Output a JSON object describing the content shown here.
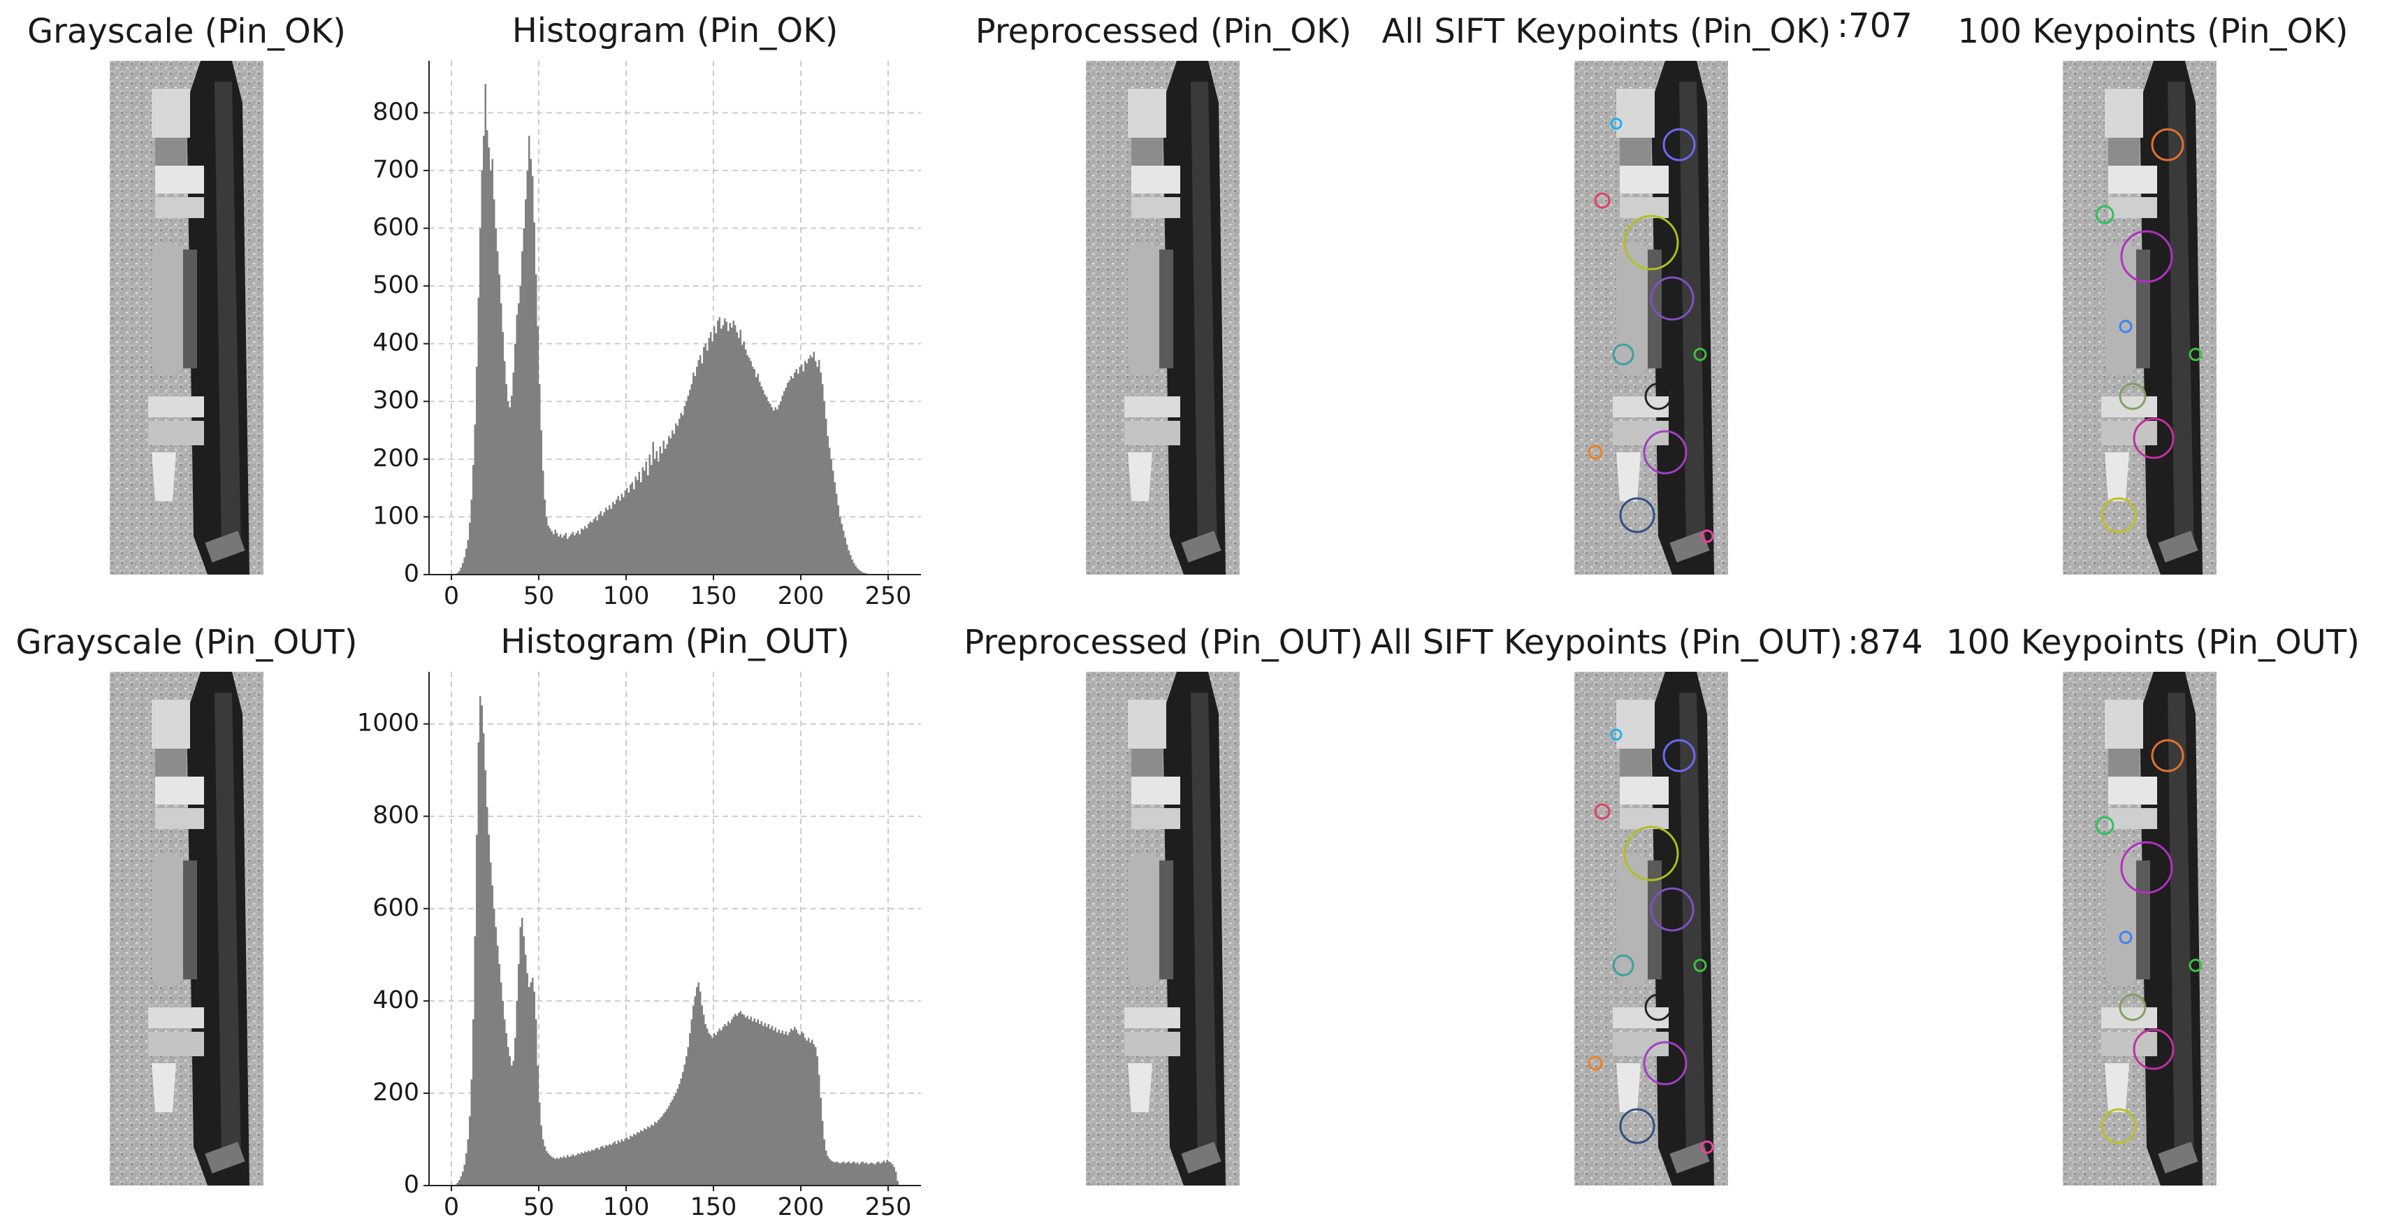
{
  "rows": [
    {
      "grayscale_title": "Grayscale (Pin_OK)",
      "preprocessed_title": "Preprocessed (Pin_OK)",
      "sift_title": "All SIFT Keypoints (Pin_OK)",
      "sift_count": ":707",
      "top100_title": "100 Keypoints (Pin_OK)"
    },
    {
      "grayscale_title": "Grayscale (Pin_OUT)",
      "preprocessed_title": "Preprocessed (Pin_OUT)",
      "sift_title": "All SIFT Keypoints (Pin_OUT)",
      "sift_count": ":874",
      "top100_title": "100 Keypoints (Pin_OUT)"
    }
  ],
  "chart_data": [
    {
      "type": "histogram",
      "title": "Histogram (Pin_OK)",
      "color": "#808080",
      "grid": true,
      "xlim": [
        -12.8,
        268.8
      ],
      "ylim": [
        0,
        890
      ],
      "xticks": [
        0,
        50,
        100,
        150,
        200,
        250
      ],
      "yticks": [
        0,
        100,
        200,
        300,
        400,
        500,
        600,
        700,
        800
      ],
      "bins": [
        0,
        1,
        2,
        3,
        4,
        5,
        6,
        7,
        8,
        9,
        10,
        11,
        12,
        13,
        14,
        15,
        16,
        17,
        18,
        19,
        20,
        21,
        22,
        23,
        24,
        25,
        26,
        27,
        28,
        29,
        30,
        31,
        32,
        33,
        34,
        35,
        36,
        37,
        38,
        39,
        40,
        41,
        42,
        43,
        44,
        45,
        46,
        47,
        48,
        49,
        50,
        51,
        52,
        53,
        54,
        55,
        56,
        57,
        58,
        59,
        60,
        61,
        62,
        63,
        64,
        65,
        66,
        67,
        68,
        69,
        70,
        71,
        72,
        73,
        74,
        75,
        76,
        77,
        78,
        79,
        80,
        81,
        82,
        83,
        84,
        85,
        86,
        87,
        88,
        89,
        90,
        91,
        92,
        93,
        94,
        95,
        96,
        97,
        98,
        99,
        100,
        101,
        102,
        103,
        104,
        105,
        106,
        107,
        108,
        109,
        110,
        111,
        112,
        113,
        114,
        115,
        116,
        117,
        118,
        119,
        120,
        121,
        122,
        123,
        124,
        125,
        126,
        127,
        128,
        129,
        130,
        131,
        132,
        133,
        134,
        135,
        136,
        137,
        138,
        139,
        140,
        141,
        142,
        143,
        144,
        145,
        146,
        147,
        148,
        149,
        150,
        151,
        152,
        153,
        154,
        155,
        156,
        157,
        158,
        159,
        160,
        161,
        162,
        163,
        164,
        165,
        166,
        167,
        168,
        169,
        170,
        171,
        172,
        173,
        174,
        175,
        176,
        177,
        178,
        179,
        180,
        181,
        182,
        183,
        184,
        185,
        186,
        187,
        188,
        189,
        190,
        191,
        192,
        193,
        194,
        195,
        196,
        197,
        198,
        199,
        200,
        201,
        202,
        203,
        204,
        205,
        206,
        207,
        208,
        209,
        210,
        211,
        212,
        213,
        214,
        215,
        216,
        217,
        218,
        219,
        220,
        221,
        222,
        223,
        224,
        225,
        226,
        227,
        228,
        229,
        230,
        231,
        232,
        233,
        234,
        235,
        236,
        237,
        238,
        239,
        240,
        241,
        242,
        243,
        244,
        245,
        246,
        247,
        248,
        249,
        250,
        251,
        252,
        253,
        254,
        255,
        256
      ],
      "values": [
        0,
        0,
        1,
        3,
        6,
        12,
        20,
        30,
        45,
        60,
        90,
        130,
        190,
        260,
        360,
        480,
        600,
        700,
        760,
        850,
        770,
        740,
        700,
        720,
        650,
        600,
        560,
        520,
        470,
        420,
        370,
        330,
        300,
        290,
        310,
        350,
        400,
        450,
        470,
        500,
        560,
        600,
        650,
        700,
        760,
        720,
        690,
        610,
        520,
        430,
        330,
        250,
        180,
        130,
        100,
        85,
        80,
        75,
        70,
        78,
        72,
        66,
        70,
        64,
        68,
        72,
        62,
        66,
        70,
        74,
        68,
        72,
        76,
        70,
        80,
        78,
        84,
        80,
        88,
        92,
        90,
        96,
        100,
        94,
        104,
        110,
        102,
        108,
        116,
        112,
        120,
        114,
        126,
        122,
        130,
        136,
        128,
        140,
        134,
        146,
        150,
        142,
        156,
        160,
        148,
        170,
        164,
        178,
        160,
        186,
        180,
        196,
        172,
        208,
        190,
        230,
        200,
        214,
        196,
        222,
        210,
        232,
        218,
        226,
        240,
        236,
        250,
        244,
        262,
        258,
        270,
        280,
        276,
        292,
        300,
        310,
        320,
        330,
        350,
        344,
        360,
        372,
        380,
        366,
        394,
        400,
        388,
        410,
        420,
        404,
        430,
        418,
        440,
        446,
        426,
        432,
        444,
        438,
        422,
        436,
        428,
        440,
        432,
        420,
        410,
        424,
        398,
        404,
        390,
        380,
        376,
        370,
        360,
        356,
        342,
        348,
        334,
        326,
        320,
        312,
        308,
        300,
        296,
        290,
        284,
        290,
        286,
        294,
        300,
        310,
        318,
        324,
        332,
        336,
        344,
        340,
        350,
        356,
        348,
        360,
        364,
        352,
        370,
        366,
        374,
        380,
        376,
        386,
        370,
        360,
        372,
        350,
        330,
        300,
        270,
        240,
        220,
        200,
        180,
        160,
        140,
        120,
        100,
        88,
        76,
        64,
        52,
        42,
        34,
        26,
        20,
        15,
        11,
        8,
        6,
        4,
        3,
        2,
        1,
        1,
        0,
        0,
        0,
        0,
        0,
        0,
        0,
        0,
        0,
        0,
        0,
        0,
        0,
        0,
        0,
        0
      ]
    },
    {
      "type": "histogram",
      "title": "Histogram (Pin_OUT)",
      "color": "#808080",
      "grid": true,
      "xlim": [
        -12.8,
        268.8
      ],
      "ylim": [
        0,
        1113
      ],
      "xticks": [
        0,
        50,
        100,
        150,
        200,
        250
      ],
      "yticks": [
        0,
        200,
        400,
        600,
        800,
        1000
      ],
      "bins": [
        0,
        1,
        2,
        3,
        4,
        5,
        6,
        7,
        8,
        9,
        10,
        11,
        12,
        13,
        14,
        15,
        16,
        17,
        18,
        19,
        20,
        21,
        22,
        23,
        24,
        25,
        26,
        27,
        28,
        29,
        30,
        31,
        32,
        33,
        34,
        35,
        36,
        37,
        38,
        39,
        40,
        41,
        42,
        43,
        44,
        45,
        46,
        47,
        48,
        49,
        50,
        51,
        52,
        53,
        54,
        55,
        56,
        57,
        58,
        59,
        60,
        61,
        62,
        63,
        64,
        65,
        66,
        67,
        68,
        69,
        70,
        71,
        72,
        73,
        74,
        75,
        76,
        77,
        78,
        79,
        80,
        81,
        82,
        83,
        84,
        85,
        86,
        87,
        88,
        89,
        90,
        91,
        92,
        93,
        94,
        95,
        96,
        97,
        98,
        99,
        100,
        101,
        102,
        103,
        104,
        105,
        106,
        107,
        108,
        109,
        110,
        111,
        112,
        113,
        114,
        115,
        116,
        117,
        118,
        119,
        120,
        121,
        122,
        123,
        124,
        125,
        126,
        127,
        128,
        129,
        130,
        131,
        132,
        133,
        134,
        135,
        136,
        137,
        138,
        139,
        140,
        141,
        142,
        143,
        144,
        145,
        146,
        147,
        148,
        149,
        150,
        151,
        152,
        153,
        154,
        155,
        156,
        157,
        158,
        159,
        160,
        161,
        162,
        163,
        164,
        165,
        166,
        167,
        168,
        169,
        170,
        171,
        172,
        173,
        174,
        175,
        176,
        177,
        178,
        179,
        180,
        181,
        182,
        183,
        184,
        185,
        186,
        187,
        188,
        189,
        190,
        191,
        192,
        193,
        194,
        195,
        196,
        197,
        198,
        199,
        200,
        201,
        202,
        203,
        204,
        205,
        206,
        207,
        208,
        209,
        210,
        211,
        212,
        213,
        214,
        215,
        216,
        217,
        218,
        219,
        220,
        221,
        222,
        223,
        224,
        225,
        226,
        227,
        228,
        229,
        230,
        231,
        232,
        233,
        234,
        235,
        236,
        237,
        238,
        239,
        240,
        241,
        242,
        243,
        244,
        245,
        246,
        247,
        248,
        249,
        250,
        251,
        252,
        253,
        254,
        255,
        256
      ],
      "values": [
        0,
        0,
        2,
        6,
        12,
        20,
        30,
        45,
        70,
        100,
        150,
        230,
        360,
        540,
        760,
        960,
        1060,
        1040,
        980,
        900,
        820,
        760,
        700,
        650,
        600,
        560,
        520,
        480,
        440,
        400,
        360,
        330,
        300,
        280,
        260,
        270,
        320,
        400,
        480,
        560,
        580,
        540,
        500,
        460,
        430,
        440,
        450,
        420,
        360,
        260,
        180,
        130,
        100,
        85,
        75,
        70,
        66,
        62,
        60,
        58,
        60,
        58,
        62,
        60,
        64,
        60,
        66,
        62,
        64,
        68,
        64,
        66,
        70,
        68,
        72,
        70,
        74,
        72,
        76,
        74,
        78,
        76,
        80,
        82,
        78,
        84,
        86,
        82,
        88,
        86,
        90,
        88,
        92,
        96,
        90,
        98,
        94,
        100,
        96,
        102,
        104,
        100,
        108,
        106,
        112,
        110,
        116,
        114,
        120,
        118,
        124,
        122,
        128,
        126,
        132,
        130,
        138,
        136,
        142,
        146,
        150,
        156,
        160,
        166,
        172,
        180,
        186,
        194,
        200,
        210,
        220,
        232,
        246,
        262,
        280,
        300,
        330,
        360,
        390,
        410,
        430,
        440,
        420,
        390,
        370,
        350,
        340,
        330,
        326,
        320,
        330,
        326,
        334,
        340,
        336,
        344,
        350,
        346,
        356,
        352,
        360,
        366,
        372,
        368,
        374,
        378,
        372,
        370,
        364,
        368,
        360,
        366,
        356,
        362,
        354,
        360,
        350,
        356,
        346,
        352,
        344,
        350,
        340,
        346,
        336,
        342,
        332,
        338,
        330,
        336,
        328,
        334,
        326,
        332,
        340,
        336,
        344,
        338,
        330,
        326,
        334,
        330,
        320,
        314,
        320,
        310,
        316,
        306,
        300,
        280,
        240,
        190,
        140,
        100,
        76,
        64,
        58,
        54,
        52,
        50,
        52,
        50,
        48,
        50,
        52,
        48,
        50,
        52,
        48,
        50,
        52,
        48,
        50,
        46,
        50,
        52,
        48,
        50,
        46,
        48,
        50,
        48,
        46,
        50,
        52,
        48,
        50,
        54,
        50,
        56,
        52,
        50,
        46,
        40,
        30,
        10
      ]
    }
  ]
}
